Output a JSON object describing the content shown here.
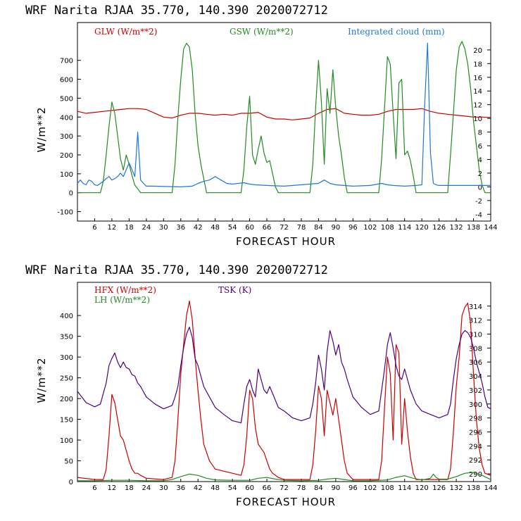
{
  "title": "WRF   Narita RJAA   35.770, 140.390  2020072712",
  "colors": {
    "red": "#cc0000",
    "green": "#228b22",
    "blue": "#1f78d1",
    "purple": "#4b0082",
    "frame": "#000000"
  },
  "chart_data": [
    {
      "type": "line",
      "title": "WRF   Narita RJAA   35.770, 140.390  2020072712",
      "xlabel": "FORECAST HOUR",
      "ylabel": "W/m**2",
      "xlim": [
        0,
        144
      ],
      "ylim": [
        -150,
        900
      ],
      "y2lim": [
        -5,
        24
      ],
      "xticks": [
        6,
        12,
        18,
        24,
        30,
        36,
        42,
        48,
        54,
        60,
        66,
        72,
        78,
        84,
        90,
        96,
        102,
        108,
        114,
        120,
        126,
        132,
        138,
        144
      ],
      "yticks": [
        -100,
        0,
        100,
        200,
        300,
        400,
        500,
        600,
        700
      ],
      "y2ticks": [
        -4,
        -2,
        0,
        2,
        4,
        6,
        8,
        10,
        12,
        14,
        16,
        18,
        20
      ],
      "legend": [
        "GLW (W/m**2)",
        "GSW (W/m**2)",
        "Integrated cloud (mm)"
      ],
      "series": [
        {
          "name": "GLW (W/m**2)",
          "axis": "left",
          "color": "red",
          "x": [
            0,
            3,
            6,
            9,
            12,
            15,
            18,
            21,
            24,
            27,
            30,
            33,
            36,
            39,
            42,
            45,
            48,
            51,
            54,
            57,
            60,
            63,
            66,
            69,
            72,
            75,
            78,
            81,
            84,
            87,
            90,
            93,
            96,
            99,
            102,
            105,
            108,
            111,
            114,
            117,
            120,
            123,
            126,
            129,
            132,
            135,
            138,
            141,
            144
          ],
          "y": [
            430,
            420,
            425,
            430,
            435,
            440,
            445,
            445,
            440,
            420,
            400,
            395,
            410,
            420,
            420,
            415,
            410,
            415,
            410,
            420,
            420,
            425,
            400,
            390,
            390,
            385,
            390,
            395,
            420,
            440,
            445,
            420,
            415,
            410,
            410,
            415,
            430,
            440,
            440,
            440,
            445,
            430,
            420,
            415,
            410,
            405,
            400,
            400,
            398
          ]
        },
        {
          "name": "GSW (W/m**2)",
          "axis": "left",
          "color": "green",
          "x": [
            0,
            8,
            9,
            10,
            11,
            12,
            13,
            14,
            15,
            16,
            17,
            18,
            19,
            20,
            21,
            22,
            33,
            34,
            35,
            36,
            37,
            38,
            39,
            40,
            41,
            42,
            43,
            45,
            57,
            58,
            59,
            60,
            61,
            62,
            63,
            64,
            65,
            66,
            67,
            68,
            69,
            70,
            81,
            82,
            83,
            84,
            85,
            86,
            87,
            88,
            89,
            90,
            91,
            92,
            93,
            94,
            105,
            106,
            107,
            108,
            109,
            110,
            111,
            112,
            113,
            114,
            115,
            116,
            117,
            118,
            129,
            130,
            131,
            132,
            133,
            134,
            135,
            136,
            137,
            138,
            139,
            140,
            141,
            142,
            144
          ],
          "y": [
            0,
            0,
            60,
            200,
            350,
            480,
            420,
            300,
            180,
            120,
            200,
            150,
            90,
            40,
            20,
            0,
            0,
            150,
            400,
            600,
            760,
            790,
            770,
            650,
            420,
            250,
            150,
            0,
            0,
            120,
            350,
            510,
            200,
            150,
            230,
            300,
            210,
            160,
            170,
            100,
            30,
            0,
            0,
            150,
            450,
            700,
            480,
            150,
            550,
            420,
            650,
            450,
            300,
            200,
            80,
            0,
            0,
            180,
            450,
            720,
            680,
            420,
            180,
            580,
            600,
            200,
            220,
            170,
            90,
            0,
            0,
            200,
            420,
            650,
            770,
            800,
            760,
            680,
            550,
            380,
            250,
            120,
            40,
            0,
            0
          ]
        },
        {
          "name": "Integrated cloud (mm)",
          "axis": "right",
          "color": "blue",
          "x": [
            0,
            1,
            2,
            3,
            4,
            5,
            6,
            7,
            8,
            9,
            10,
            11,
            12,
            13,
            14,
            15,
            16,
            17,
            18,
            19,
            20,
            21,
            22,
            23,
            24,
            26,
            36,
            40,
            42,
            44,
            46,
            48,
            50,
            52,
            54,
            56,
            58,
            60,
            62,
            66,
            72,
            84,
            86,
            88,
            90,
            96,
            102,
            106,
            108,
            110,
            114,
            118,
            120,
            121,
            122,
            123,
            124,
            125,
            126,
            128,
            132,
            136,
            140,
            144
          ],
          "y": [
            0.5,
            1,
            0.5,
            0.3,
            1,
            0.8,
            0.3,
            0.2,
            0.5,
            0.8,
            1.2,
            1.5,
            1,
            1.2,
            1.5,
            2,
            1.5,
            2.5,
            3.5,
            2.5,
            1.5,
            8,
            1,
            0.5,
            0.1,
            0.1,
            0,
            0.1,
            0.5,
            0.8,
            1,
            1.5,
            1,
            0.5,
            0.4,
            0.5,
            0.6,
            0.4,
            0.3,
            0.2,
            0.1,
            0.5,
            1,
            0.5,
            0.3,
            0.1,
            0.2,
            0.5,
            0.3,
            0.2,
            0.1,
            0.2,
            0.3,
            12,
            21,
            5,
            0.5,
            0.3,
            0.2,
            0.2,
            0.2,
            0.2,
            0.2,
            0.2
          ]
        }
      ]
    },
    {
      "type": "line",
      "title": "WRF   Narita RJAA   35.770, 140.390  2020072712",
      "xlabel": "FORECAST HOUR",
      "ylabel": "W/m**2",
      "xlim": [
        0,
        144
      ],
      "ylim": [
        0,
        480
      ],
      "y2lim": [
        288.9,
        317.4
      ],
      "xticks": [
        6,
        12,
        18,
        24,
        30,
        36,
        42,
        48,
        54,
        60,
        66,
        72,
        78,
        84,
        90,
        96,
        102,
        108,
        114,
        120,
        126,
        132,
        138,
        144
      ],
      "yticks": [
        0,
        50,
        100,
        150,
        200,
        250,
        300,
        350,
        400
      ],
      "y2ticks": [
        290,
        292,
        294,
        296,
        298,
        300,
        302,
        304,
        306,
        308,
        310,
        312,
        314
      ],
      "legend": [
        "HFX (W/m**2)",
        "LH (W/m**2)",
        "TSK (K)"
      ],
      "series": [
        {
          "name": "HFX (W/m**2)",
          "axis": "left",
          "color": "red",
          "x": [
            0,
            6,
            9,
            10,
            11,
            12,
            13,
            14,
            15,
            16,
            17,
            18,
            19,
            20,
            21,
            22,
            24,
            30,
            33,
            34,
            35,
            36,
            37,
            38,
            39,
            40,
            41,
            42,
            43,
            44,
            46,
            48,
            54,
            57,
            58,
            59,
            60,
            61,
            62,
            63,
            64,
            65,
            66,
            67,
            68,
            70,
            72,
            81,
            82,
            83,
            84,
            85,
            86,
            87,
            88,
            89,
            90,
            91,
            92,
            93,
            94,
            96,
            105,
            106,
            107,
            108,
            109,
            110,
            111,
            112,
            113,
            114,
            115,
            116,
            117,
            118,
            120,
            126,
            129,
            130,
            131,
            132,
            133,
            134,
            135,
            136,
            137,
            138,
            139,
            140,
            141,
            142,
            144
          ],
          "y": [
            10,
            5,
            5,
            30,
            110,
            210,
            190,
            150,
            110,
            100,
            75,
            50,
            30,
            20,
            20,
            15,
            8,
            5,
            10,
            50,
            150,
            260,
            330,
            400,
            435,
            390,
            300,
            220,
            150,
            90,
            50,
            30,
            20,
            15,
            40,
            110,
            220,
            200,
            130,
            90,
            80,
            70,
            50,
            30,
            20,
            10,
            5,
            5,
            40,
            120,
            230,
            200,
            110,
            220,
            190,
            160,
            200,
            150,
            100,
            50,
            20,
            5,
            5,
            50,
            180,
            300,
            260,
            100,
            330,
            310,
            90,
            200,
            120,
            60,
            20,
            5,
            5,
            5,
            5,
            30,
            120,
            230,
            300,
            400,
            420,
            430,
            380,
            260,
            150,
            80,
            40,
            20,
            15
          ]
        },
        {
          "name": "LH (W/m**2)",
          "axis": "left",
          "color": "green",
          "x": [
            0,
            6,
            12,
            18,
            24,
            30,
            33,
            36,
            39,
            42,
            45,
            48,
            54,
            60,
            63,
            66,
            69,
            72,
            78,
            84,
            87,
            90,
            93,
            96,
            102,
            108,
            111,
            114,
            117,
            120,
            123,
            124,
            125,
            126,
            129,
            132,
            135,
            138,
            141,
            144
          ],
          "y": [
            2,
            2,
            3,
            3,
            2,
            2,
            5,
            12,
            18,
            15,
            8,
            4,
            3,
            3,
            8,
            10,
            6,
            3,
            2,
            3,
            6,
            8,
            5,
            2,
            2,
            4,
            10,
            14,
            8,
            4,
            8,
            18,
            10,
            6,
            6,
            12,
            20,
            22,
            15,
            5
          ]
        },
        {
          "name": "TSK (K)",
          "axis": "right",
          "color": "purple",
          "x": [
            0,
            3,
            6,
            8,
            10,
            11,
            12,
            13,
            14,
            15,
            16,
            17,
            18,
            19,
            20,
            21,
            22,
            24,
            27,
            30,
            33,
            34,
            35,
            36,
            37,
            38,
            39,
            40,
            41,
            42,
            43,
            44,
            46,
            48,
            51,
            54,
            57,
            58,
            59,
            60,
            61,
            62,
            63,
            64,
            65,
            66,
            67,
            68,
            70,
            72,
            75,
            78,
            81,
            82,
            83,
            84,
            85,
            86,
            87,
            88,
            89,
            90,
            91,
            92,
            93,
            94,
            96,
            99,
            102,
            105,
            106,
            107,
            108,
            109,
            110,
            111,
            112,
            113,
            114,
            116,
            118,
            120,
            123,
            126,
            129,
            130,
            131,
            132,
            133,
            134,
            135,
            136,
            137,
            138,
            139,
            140,
            141,
            142,
            143,
            144
          ],
          "y": [
            301.8,
            300.2,
            299.6,
            300.0,
            303.0,
            305.5,
            306.5,
            307.3,
            306.0,
            305.2,
            306.0,
            305.2,
            305.0,
            304.2,
            304.0,
            303.0,
            302.5,
            301.0,
            300.0,
            299.3,
            299.8,
            301.0,
            302.5,
            305.5,
            308.0,
            310.0,
            311.0,
            309.5,
            306.5,
            305.5,
            304.0,
            302.5,
            301.0,
            299.5,
            298.5,
            297.6,
            297.3,
            300.0,
            302.5,
            303.5,
            302.0,
            301.0,
            305.0,
            303.5,
            302.0,
            301.5,
            302.5,
            301.5,
            299.5,
            299.0,
            298.0,
            297.6,
            298.0,
            300.0,
            303.0,
            307.0,
            305.0,
            302.0,
            307.5,
            310.5,
            309.0,
            307.0,
            308.5,
            306.0,
            305.0,
            303.5,
            301.0,
            299.5,
            298.5,
            299.0,
            302.0,
            305.0,
            308.5,
            310.2,
            308.0,
            305.5,
            304.0,
            303.5,
            305.0,
            302.0,
            300.0,
            299.0,
            298.5,
            298.0,
            298.5,
            300.0,
            303.5,
            306.5,
            308.5,
            310.0,
            310.5,
            310.2,
            309.5,
            308.0,
            306.0,
            304.5,
            303.0,
            301.0,
            299.5,
            299.3
          ]
        }
      ]
    }
  ]
}
